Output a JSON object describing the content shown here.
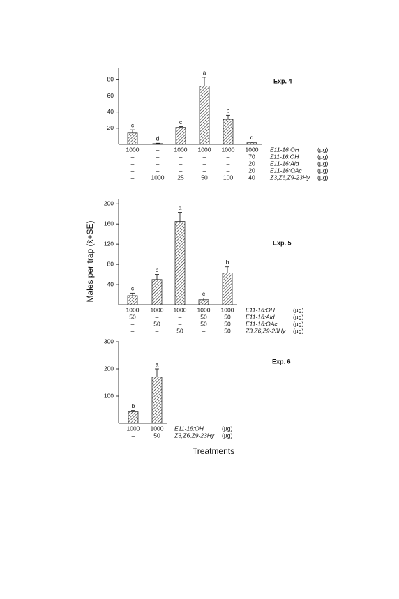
{
  "y_label": "Males per trap (x̄+SE)",
  "x_label": "Treatments",
  "chart_data": [
    {
      "type": "bar",
      "title": "Exp. 4",
      "color": "#333333",
      "values": [
        14,
        1,
        21,
        72,
        31,
        2
      ],
      "errors": [
        4,
        0.5,
        1,
        11,
        5,
        1
      ],
      "letters": [
        "c",
        "d",
        "c",
        "a",
        "b",
        "d"
      ],
      "ylim": [
        0,
        95
      ],
      "yticks": [
        20,
        40,
        60,
        80
      ],
      "table": [
        {
          "cells": [
            "1000",
            "–",
            "1000",
            "1000",
            "1000",
            "1000"
          ],
          "label": "E11-16:OH",
          "unit": "(µg)"
        },
        {
          "cells": [
            "–",
            "–",
            "–",
            "–",
            "–",
            "70"
          ],
          "label": "Z11-16:OH",
          "unit": "(µg)"
        },
        {
          "cells": [
            "–",
            "–",
            "–",
            "–",
            "–",
            "20"
          ],
          "label": "E11-16:Ald",
          "unit": "(µg)"
        },
        {
          "cells": [
            "–",
            "–",
            "–",
            "–",
            "–",
            "20"
          ],
          "label": "E11-16:OAc",
          "unit": "(µg)"
        },
        {
          "cells": [
            "–",
            "1000",
            "25",
            "50",
            "100",
            "40"
          ],
          "label": "Z3,Z6,Z9-23Hy",
          "unit": "(µg)"
        }
      ]
    },
    {
      "type": "bar",
      "title": "Exp. 5",
      "color": "#333333",
      "values": [
        18,
        50,
        165,
        10,
        63
      ],
      "errors": [
        5,
        10,
        18,
        3,
        12
      ],
      "letters": [
        "c",
        "b",
        "a",
        "c",
        "b"
      ],
      "ylim": [
        0,
        210
      ],
      "yticks": [
        40,
        80,
        120,
        160,
        200
      ],
      "table": [
        {
          "cells": [
            "1000",
            "1000",
            "1000",
            "1000",
            "1000"
          ],
          "label": "E11-16:OH",
          "unit": "(µg)"
        },
        {
          "cells": [
            "50",
            "–",
            "–",
            "50",
            "50"
          ],
          "label": "E11-16:Ald",
          "unit": "(µg)"
        },
        {
          "cells": [
            "–",
            "50",
            "–",
            "50",
            "50"
          ],
          "label": "E11-16:OAc",
          "unit": "(µg)"
        },
        {
          "cells": [
            "–",
            "–",
            "50",
            "–",
            "50"
          ],
          "label": "Z3,Z6,Z9-23Hy",
          "unit": "(µg)"
        }
      ]
    },
    {
      "type": "bar",
      "title": "Exp. 6",
      "color": "#333333",
      "values": [
        42,
        170
      ],
      "errors": [
        5,
        30
      ],
      "letters": [
        "b",
        "a"
      ],
      "ylim": [
        0,
        300
      ],
      "yticks": [
        100,
        200,
        300
      ],
      "table": [
        {
          "cells": [
            "1000",
            "1000"
          ],
          "label": "E11-16:OH",
          "unit": "(µg)"
        },
        {
          "cells": [
            "–",
            "50"
          ],
          "label": "Z3,Z6,Z9-23Hy",
          "unit": "(µg)"
        }
      ]
    }
  ]
}
